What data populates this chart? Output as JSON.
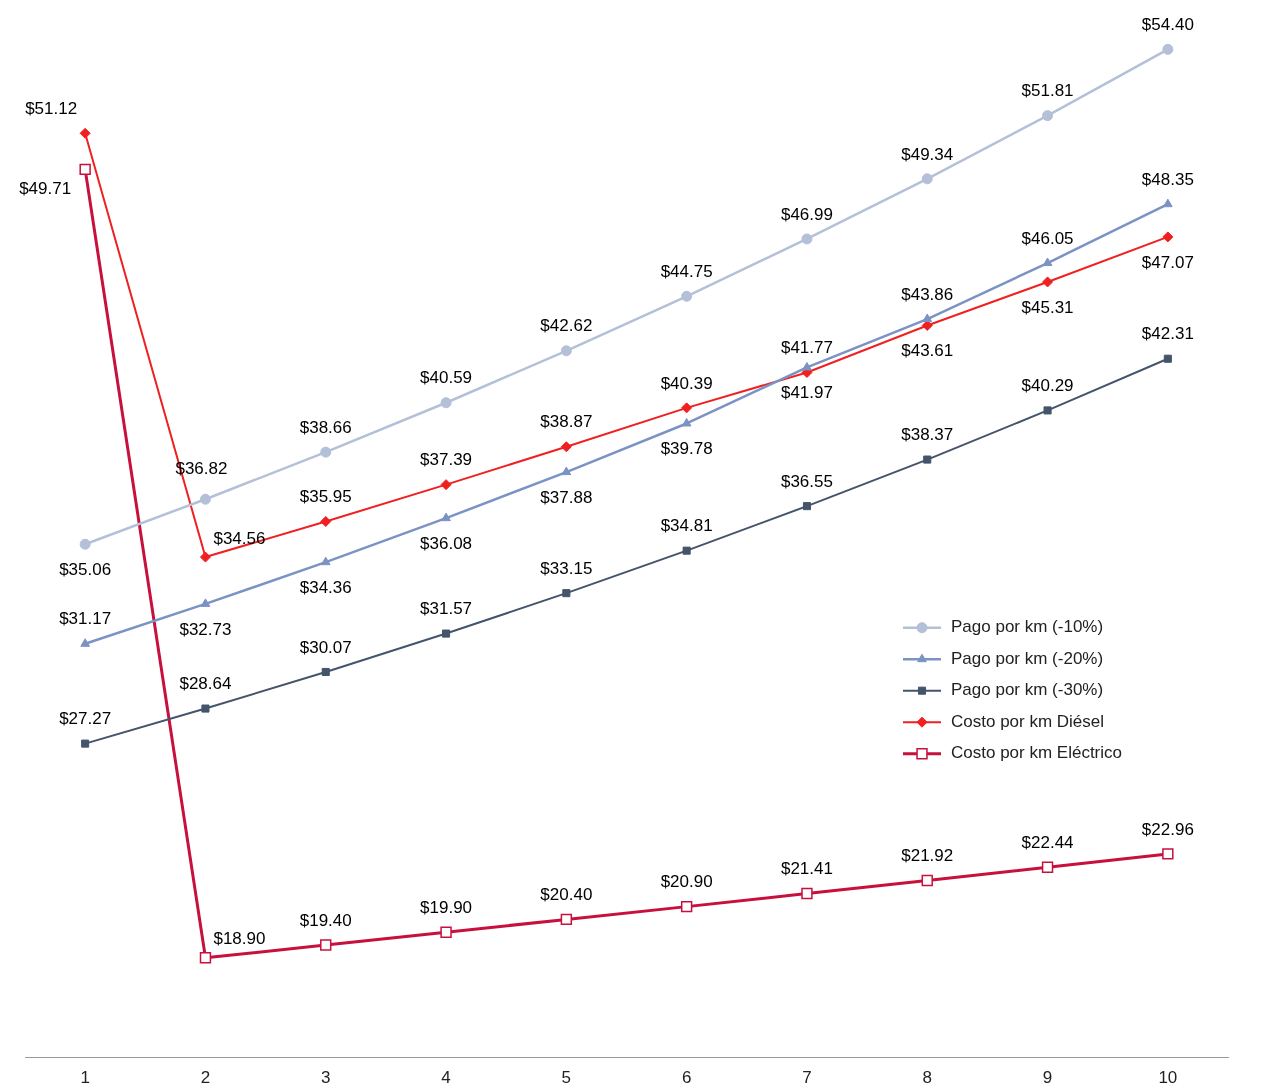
{
  "chart_data": {
    "type": "line",
    "categories": [
      "1",
      "2",
      "3",
      "4",
      "5",
      "6",
      "7",
      "8",
      "9",
      "10"
    ],
    "tick_labels": "x",
    "grid": false,
    "legend": "right",
    "data_labels": true,
    "series": [
      {
        "name": "Pago por km (-10%)",
        "color": "#b4c0d8",
        "marker": "circle",
        "values": [
          35.06,
          36.82,
          38.66,
          40.59,
          42.62,
          44.75,
          46.99,
          49.34,
          51.81,
          54.4
        ],
        "value_labels": [
          "$35.06",
          "$36.82",
          "$38.66",
          "$40.59",
          "$42.62",
          "$44.75",
          "$46.99",
          "$49.34",
          "$51.81",
          "$54.40"
        ]
      },
      {
        "name": "Pago por km (-20%)",
        "color": "#7b93c4",
        "marker": "triangle",
        "values": [
          31.17,
          32.73,
          34.36,
          36.08,
          37.88,
          39.78,
          41.97,
          43.86,
          46.05,
          48.35
        ],
        "value_labels": [
          "$31.17",
          "$32.73",
          "$34.36",
          "$36.08",
          "$37.88",
          "$39.78",
          "$41.97",
          "$43.86",
          "$46.05",
          "$48.35"
        ]
      },
      {
        "name": "Pago por km (-30%)",
        "color": "#44546a",
        "marker": "square",
        "values": [
          27.27,
          28.64,
          30.07,
          31.57,
          33.15,
          34.81,
          36.55,
          38.37,
          40.29,
          42.31
        ],
        "value_labels": [
          "$27.27",
          "$28.64",
          "$30.07",
          "$31.57",
          "$33.15",
          "$34.81",
          "$36.55",
          "$38.37",
          "$40.29",
          "$42.31"
        ]
      },
      {
        "name": "Costo por km Diésel",
        "color": "#f02020",
        "marker": "diamond",
        "values": [
          51.12,
          34.56,
          35.95,
          37.39,
          38.87,
          40.39,
          41.77,
          43.61,
          45.31,
          47.07
        ],
        "value_labels": [
          "$51.12",
          "$34.56",
          "$35.95",
          "$37.39",
          "$38.87",
          "$40.39",
          "$41.77",
          "$43.61",
          "$45.31",
          "$47.07"
        ]
      },
      {
        "name": "Costo por km Eléctrico",
        "color": "#c8103c",
        "marker": "square",
        "values": [
          49.71,
          18.9,
          19.4,
          19.9,
          20.4,
          20.9,
          21.41,
          21.92,
          22.44,
          22.96
        ],
        "value_labels": [
          "$49.71",
          "$18.90",
          "$19.40",
          "$19.90",
          "$20.40",
          "$20.90",
          "$21.41",
          "$21.92",
          "$22.44",
          "$22.96"
        ]
      }
    ]
  }
}
